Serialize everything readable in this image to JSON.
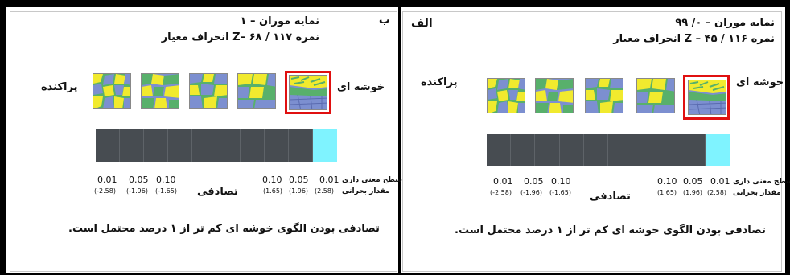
{
  "panels": {
    "left": {
      "letter": "ب",
      "title_line1": "نمایه موران – ۱",
      "title_line2": "نمره Z– ۶۸ / ۱۱۷ انحراف معیار",
      "pole_clustered": "خوشه ای",
      "pole_dispersed": "پراکنده",
      "significance_label": "سطح معنی داری",
      "critical_label": "مقدار بحرانی",
      "random_label": "تصادفی",
      "sig_left": [
        "0.01",
        "0.05",
        "0.10"
      ],
      "crit_left": [
        "(-2.58)",
        "(-1.96)",
        "(-1.65)"
      ],
      "sig_right": [
        "0.10",
        "0.05",
        "0.01"
      ],
      "crit_right": [
        "(1.65)",
        "(1.96)",
        "(2.58)"
      ],
      "conclusion": "تصادفی بودن الگوی خوشه ای کم تر از ۱ درصد محتمل است.",
      "active_segment": 9,
      "segment_count": 10
    },
    "right": {
      "letter": "الف",
      "title_line1": "نمایه موران – ۰/ ۹۹",
      "title_line2": "نمره Z – ۴۵ / ۱۱۶ انحراف معیار",
      "pole_clustered": "خوشه ای",
      "pole_dispersed": "پراکنده",
      "significance_label": "سطح معنی داری",
      "critical_label": "مقدار بحرانی",
      "random_label": "تصادفی",
      "sig_left": [
        "0.01",
        "0.05",
        "0.10"
      ],
      "crit_left": [
        "(-2.58)",
        "(-1.96)",
        "(-1.65)"
      ],
      "sig_right": [
        "0.10",
        "0.05",
        "0.01"
      ],
      "crit_right": [
        "(1.65)",
        "(1.96)",
        "(2.58)"
      ],
      "conclusion": "تصادفی بودن الگوی خوشه ای کم تر از ۱ درصد محتمل است.",
      "active_segment": 9,
      "segment_count": 10
    }
  },
  "colors": {
    "bar_segment": "#474c51",
    "bar_active": "#7ff3ff",
    "highlight": "#e01010",
    "pattern_yellow": "#f1ea2e",
    "pattern_blue": "#7c8fd0",
    "pattern_green": "#58b06b"
  }
}
